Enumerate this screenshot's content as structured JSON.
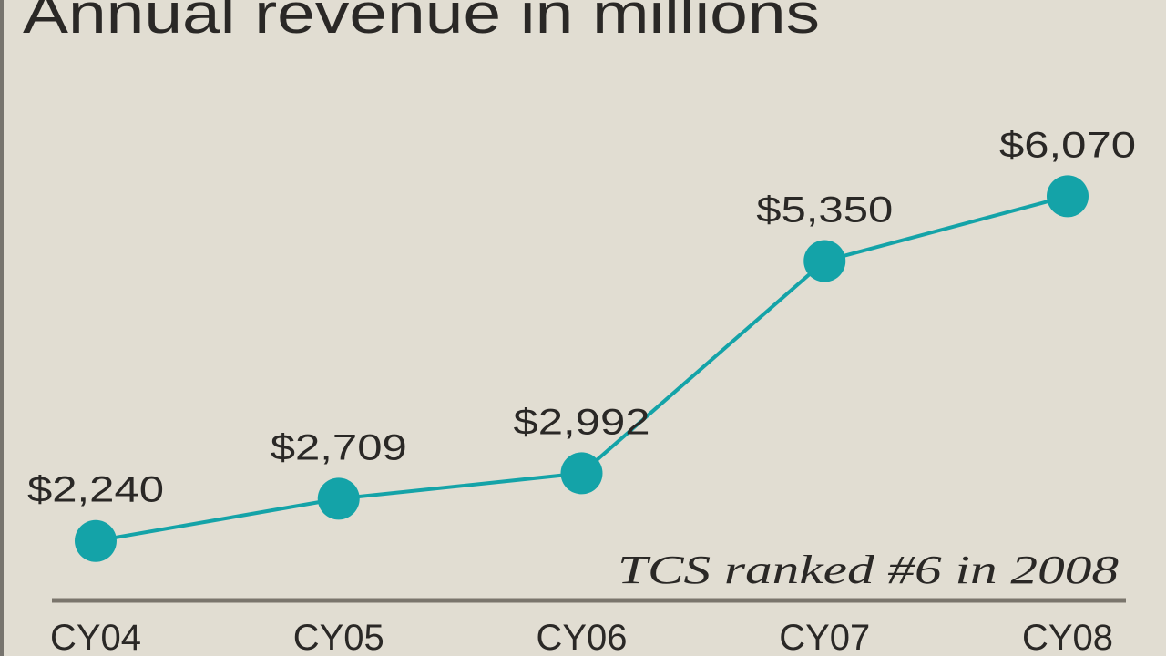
{
  "chart_data": {
    "type": "line",
    "title": "Annual revenue in millions",
    "annotation": "TCS ranked #6 in 2008",
    "categories": [
      "CY04",
      "CY05",
      "CY06",
      "CY07",
      "CY08"
    ],
    "values": [
      2240,
      2709,
      2992,
      5350,
      6070
    ],
    "value_labels": [
      "$2,240",
      "$2,709",
      "$2,992",
      "$5,350",
      "$6,070"
    ],
    "xlabel": "",
    "ylabel": "",
    "ylim": [
      0,
      8250
    ],
    "grid": false,
    "colors": {
      "line": "#14a3a8",
      "background": "#e1ddd2",
      "axis": "#7a756c",
      "text": "#2a2826"
    }
  }
}
